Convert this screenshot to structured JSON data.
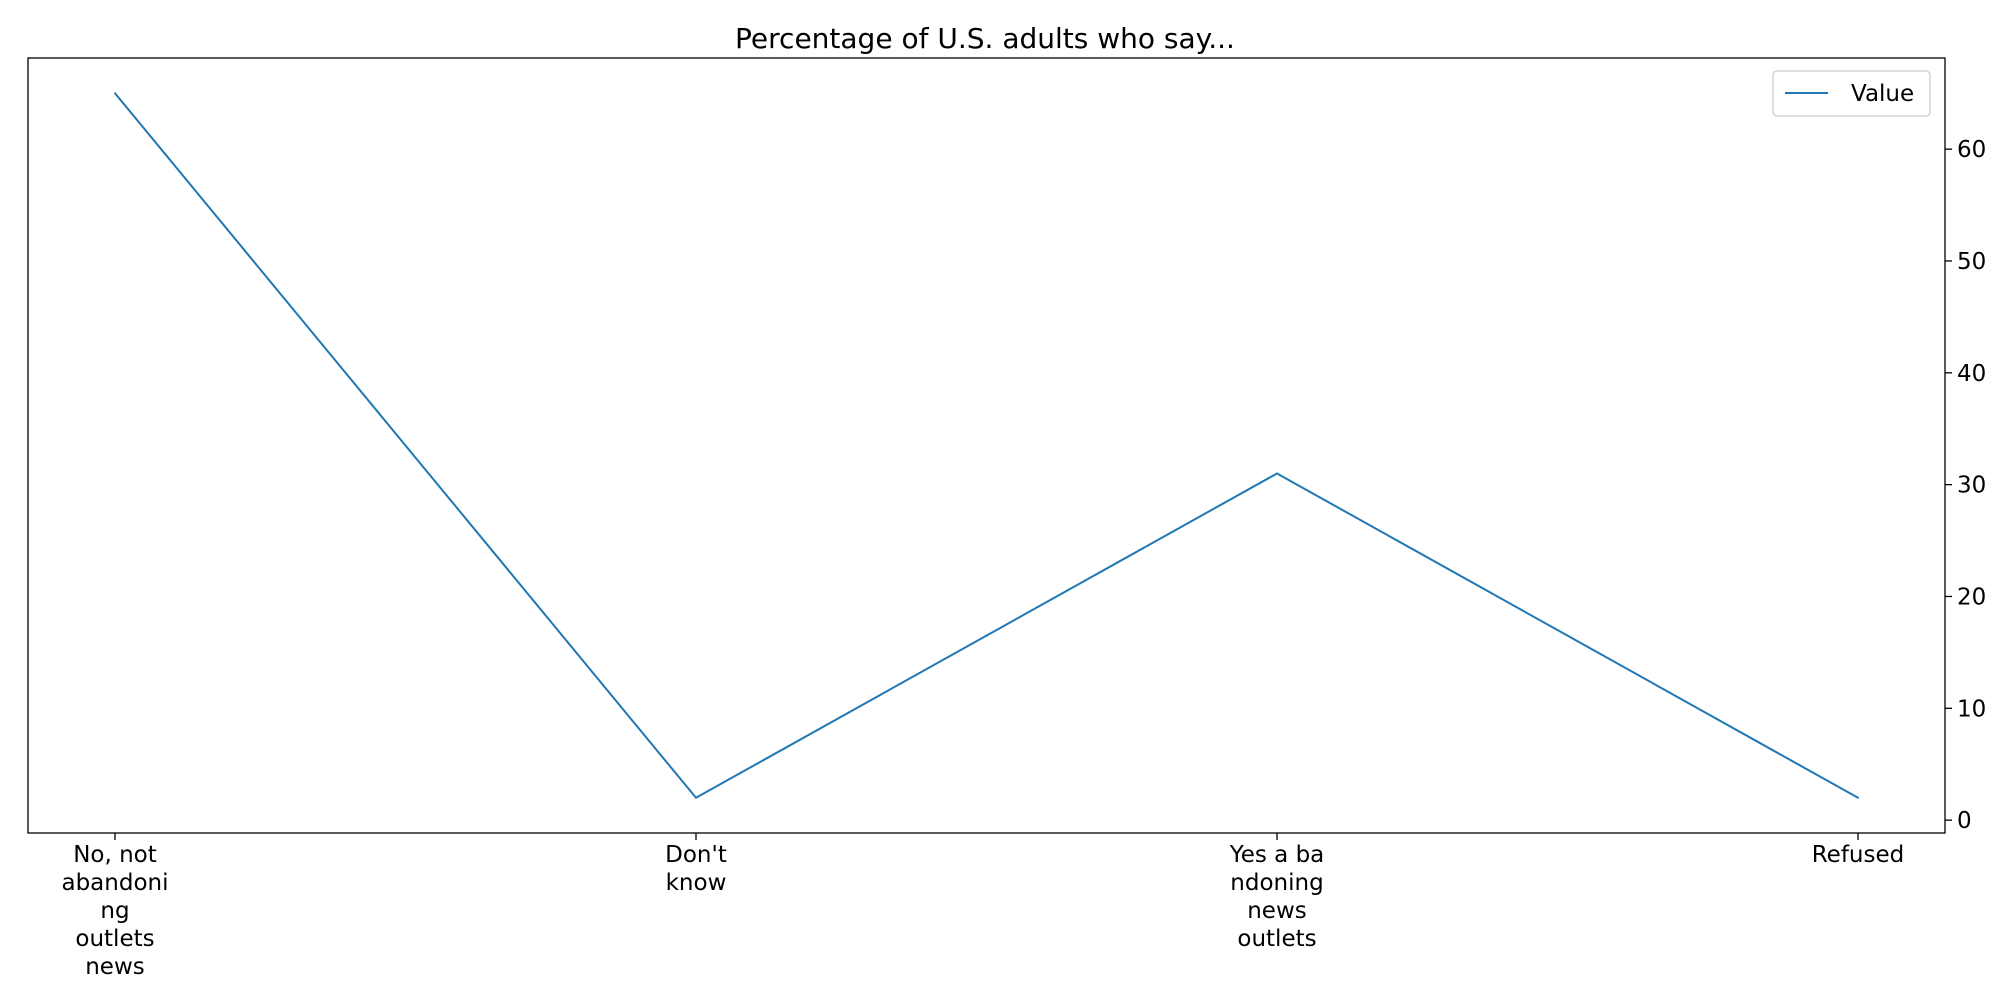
{
  "chart_data": {
    "type": "line",
    "title": "Percentage of U.S. adults who say...",
    "xlabel": "",
    "ylabel": "",
    "categories": [
      [
        "No, not",
        "abandoni",
        "ng",
        "outlets",
        "news"
      ],
      [
        "Don't",
        "know"
      ],
      [
        "Yes a ba",
        "ndoning",
        "news",
        "outlets"
      ],
      [
        "Refused"
      ]
    ],
    "series": [
      {
        "name": "Value",
        "values": [
          65,
          2,
          31,
          2
        ],
        "color": "#1f77b4"
      }
    ],
    "y_ticks": [
      0,
      10,
      20,
      30,
      40,
      50,
      60
    ],
    "ylim": [
      -1.15,
      68.15
    ],
    "y_axis_side": "right",
    "grid": false,
    "legend": "top-right"
  }
}
